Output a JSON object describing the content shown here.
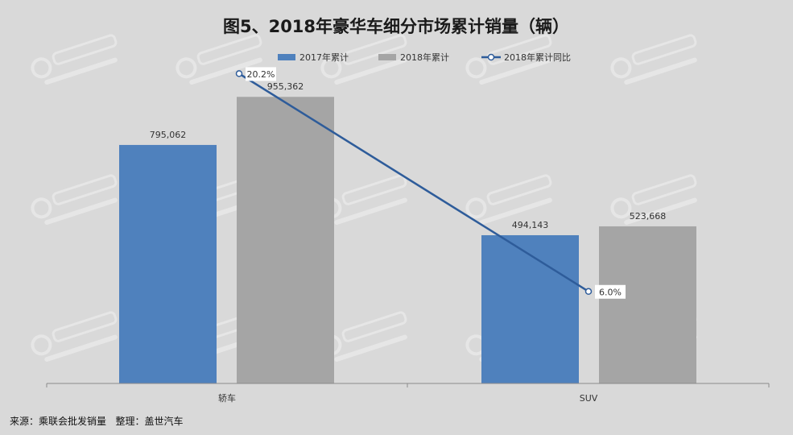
{
  "chart_data": {
    "type": "bar",
    "title": "图5、2018年豪华车细分市场累计销量（辆）",
    "categories": [
      "轿车",
      "SUV"
    ],
    "series": [
      {
        "name": "2017年累计",
        "type": "bar",
        "color": "#4f81bd",
        "values": [
          795062,
          494143
        ],
        "labels": [
          "795,062",
          "494,143"
        ]
      },
      {
        "name": "2018年累计",
        "type": "bar",
        "color": "#a5a5a5",
        "values": [
          955362,
          523668
        ],
        "labels": [
          "955,362",
          "523,668"
        ]
      },
      {
        "name": "2018年累计同比",
        "type": "line",
        "color": "#2e5c9a",
        "values": [
          20.2,
          6.0
        ],
        "labels": [
          "20.2%",
          "6.0%"
        ],
        "unit": "%"
      }
    ],
    "ylim": [
      0,
      1050000
    ],
    "secondary_ylim": [
      0,
      25
    ],
    "grid": false,
    "legend_position": "top"
  },
  "footer": {
    "source": "来源：乘联会批发销量",
    "editor": "整理：盖世汽车"
  }
}
